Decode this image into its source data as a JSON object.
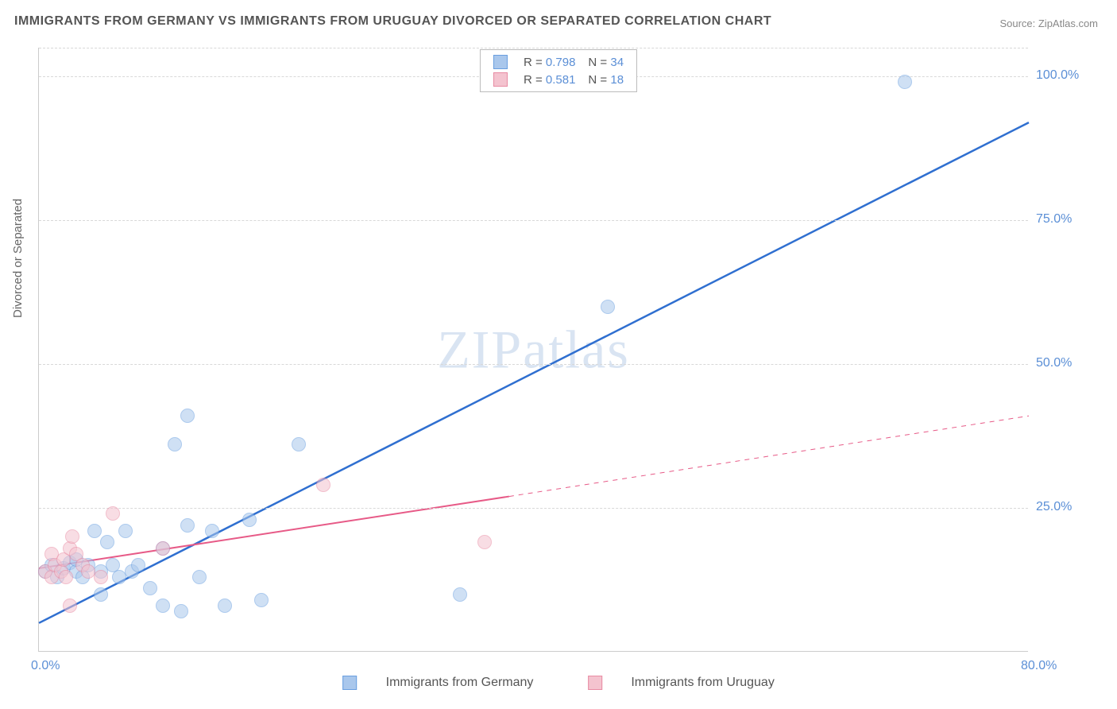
{
  "title": "IMMIGRANTS FROM GERMANY VS IMMIGRANTS FROM URUGUAY DIVORCED OR SEPARATED CORRELATION CHART",
  "source": "Source: ZipAtlas.com",
  "watermark": "ZIPatlas",
  "y_axis_label": "Divorced or Separated",
  "chart": {
    "type": "scatter",
    "background_color": "#ffffff",
    "grid_color": "#d8d8d8",
    "axis_color": "#cccccc",
    "tick_color": "#5b8fd6",
    "tick_fontsize": 16,
    "xlim": [
      0,
      80
    ],
    "ylim": [
      0,
      105
    ],
    "y_ticks": [
      {
        "value": 25,
        "label": "25.0%"
      },
      {
        "value": 50,
        "label": "50.0%"
      },
      {
        "value": 75,
        "label": "75.0%"
      },
      {
        "value": 100,
        "label": "100.0%"
      }
    ],
    "x_ticks": [
      {
        "value": 0,
        "label": "0.0%"
      },
      {
        "value": 80,
        "label": "80.0%"
      }
    ],
    "point_radius": 9,
    "point_opacity": 0.55,
    "point_border_width": 1.5,
    "series": [
      {
        "name": "Immigrants from Germany",
        "fill_color": "#a9c7ec",
        "border_color": "#6a9fe0",
        "line_color": "#2f6fd0",
        "line_width": 2.5,
        "line_dash": "none",
        "R": "0.798",
        "N": "34",
        "trend": {
          "x1": 0,
          "y1": 5,
          "x2": 80,
          "y2": 92
        },
        "points": [
          {
            "x": 0.5,
            "y": 14
          },
          {
            "x": 1,
            "y": 15
          },
          {
            "x": 1.5,
            "y": 13
          },
          {
            "x": 2,
            "y": 14.5
          },
          {
            "x": 2.5,
            "y": 15.5
          },
          {
            "x": 3,
            "y": 14
          },
          {
            "x": 3,
            "y": 16
          },
          {
            "x": 3.5,
            "y": 13
          },
          {
            "x": 4,
            "y": 15
          },
          {
            "x": 4.5,
            "y": 21
          },
          {
            "x": 5,
            "y": 14
          },
          {
            "x": 5,
            "y": 10
          },
          {
            "x": 5.5,
            "y": 19
          },
          {
            "x": 6,
            "y": 15
          },
          {
            "x": 6.5,
            "y": 13
          },
          {
            "x": 7,
            "y": 21
          },
          {
            "x": 7.5,
            "y": 14
          },
          {
            "x": 8,
            "y": 15
          },
          {
            "x": 9,
            "y": 11
          },
          {
            "x": 10,
            "y": 18
          },
          {
            "x": 10,
            "y": 8
          },
          {
            "x": 11,
            "y": 36
          },
          {
            "x": 11.5,
            "y": 7
          },
          {
            "x": 12,
            "y": 41
          },
          {
            "x": 12,
            "y": 22
          },
          {
            "x": 13,
            "y": 13
          },
          {
            "x": 14,
            "y": 21
          },
          {
            "x": 15,
            "y": 8
          },
          {
            "x": 17,
            "y": 23
          },
          {
            "x": 18,
            "y": 9
          },
          {
            "x": 21,
            "y": 36
          },
          {
            "x": 34,
            "y": 10
          },
          {
            "x": 46,
            "y": 60
          },
          {
            "x": 70,
            "y": 99
          }
        ]
      },
      {
        "name": "Immigrants from Uruguay",
        "fill_color": "#f4c3cf",
        "border_color": "#e88ba3",
        "line_color": "#e75a87",
        "line_width": 2,
        "line_dash": "none",
        "dash_extension": {
          "x1": 38,
          "y1": 27,
          "x2": 80,
          "y2": 41,
          "dash": "6,6"
        },
        "R": "0.581",
        "N": "18",
        "trend": {
          "x1": 0,
          "y1": 14.5,
          "x2": 38,
          "y2": 27
        },
        "points": [
          {
            "x": 0.5,
            "y": 14
          },
          {
            "x": 1,
            "y": 13
          },
          {
            "x": 1,
            "y": 17
          },
          {
            "x": 1.3,
            "y": 15
          },
          {
            "x": 1.8,
            "y": 14
          },
          {
            "x": 2,
            "y": 16
          },
          {
            "x": 2.2,
            "y": 13
          },
          {
            "x": 2.5,
            "y": 18
          },
          {
            "x": 2.7,
            "y": 20
          },
          {
            "x": 2.5,
            "y": 8
          },
          {
            "x": 3,
            "y": 17
          },
          {
            "x": 3.5,
            "y": 15
          },
          {
            "x": 4,
            "y": 14
          },
          {
            "x": 5,
            "y": 13
          },
          {
            "x": 6,
            "y": 24
          },
          {
            "x": 10,
            "y": 18
          },
          {
            "x": 23,
            "y": 29
          },
          {
            "x": 36,
            "y": 19
          }
        ]
      }
    ]
  },
  "legend_bottom": [
    {
      "label": "Immigrants from Germany",
      "fill": "#a9c7ec",
      "border": "#6a9fe0"
    },
    {
      "label": "Immigrants from Uruguay",
      "fill": "#f4c3cf",
      "border": "#e88ba3"
    }
  ]
}
